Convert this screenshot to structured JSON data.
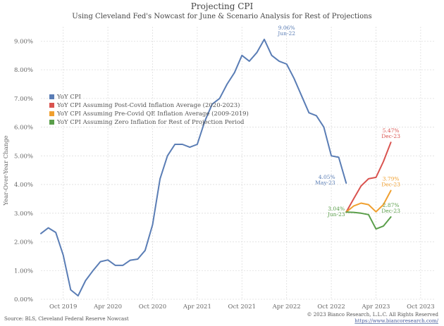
{
  "chart_data": {
    "type": "line",
    "title": "Projecting CPI",
    "subtitle": "Using Cleveland Fed's Nowcast for June & Scenario Analysis for Rest of Projections",
    "ylabel": "Year-Over-Year Change",
    "xlabel": "",
    "ylim": [
      0,
      9.5
    ],
    "yticks": [
      {
        "value": 0,
        "label": "0.00%"
      },
      {
        "value": 1,
        "label": "1.00%"
      },
      {
        "value": 2,
        "label": "2.00%"
      },
      {
        "value": 3,
        "label": "3.00%"
      },
      {
        "value": 4,
        "label": "4.00%"
      },
      {
        "value": 5,
        "label": "5.00%"
      },
      {
        "value": 6,
        "label": "6.00%"
      },
      {
        "value": 7,
        "label": "7.00%"
      },
      {
        "value": 8,
        "label": "8.00%"
      },
      {
        "value": 9,
        "label": "9.00%"
      }
    ],
    "xticks": [
      {
        "index": 0,
        "label": "Oct 2019"
      },
      {
        "index": 6,
        "label": "Apr 2020"
      },
      {
        "index": 12,
        "label": "Oct 2020"
      },
      {
        "index": 18,
        "label": "Apr 2021"
      },
      {
        "index": 24,
        "label": "Oct 2021"
      },
      {
        "index": 30,
        "label": "Apr 2022"
      },
      {
        "index": 36,
        "label": "Oct 2022"
      },
      {
        "index": 42,
        "label": "Apr 2023"
      },
      {
        "index": 48,
        "label": "Oct 2023"
      }
    ],
    "x_start_index": -3,
    "x_end_index": 50,
    "grid": true,
    "series": [
      {
        "name": "YoY CPI",
        "color": "#5a7db5",
        "start_index": -3,
        "values": [
          2.29,
          2.49,
          2.33,
          1.54,
          0.33,
          0.12,
          0.65,
          1.0,
          1.31,
          1.37,
          1.18,
          1.18,
          1.36,
          1.4,
          1.7,
          2.6,
          4.2,
          5.0,
          5.4,
          5.4,
          5.3,
          5.4,
          6.2,
          6.8,
          7.0,
          7.5,
          7.9,
          8.5,
          8.3,
          8.6,
          9.06,
          8.5,
          8.3,
          8.2,
          7.7,
          7.1,
          6.5,
          6.4,
          6.0,
          5.0,
          4.95,
          4.05
        ]
      },
      {
        "name": "YoY CPI Assuming Post-Covid Inflation Average (2020-2023)",
        "color": "#d9534f",
        "start_index": 38,
        "values": [
          3.04,
          3.5,
          3.95,
          4.2,
          4.25,
          4.8,
          5.47
        ]
      },
      {
        "name": "YoY CPI Assuming Pre-Covid QE Inflation Average (2009-2019)",
        "color": "#f0a030",
        "start_index": 38,
        "values": [
          3.04,
          3.25,
          3.35,
          3.3,
          3.05,
          3.3,
          3.79
        ]
      },
      {
        "name": "YoY CPI Assuming Zero Inflation for Rest of Projection Period",
        "color": "#5a9e4a",
        "start_index": 38,
        "values": [
          3.04,
          3.03,
          3.0,
          2.95,
          2.45,
          2.55,
          2.87
        ]
      }
    ],
    "annotations": [
      {
        "text": "9.06%",
        "subtext": "Jun-22",
        "value": 9.06,
        "index": 30,
        "color": "#5a7db5",
        "anchor": "above"
      },
      {
        "text": "4.05%",
        "subtext": "May-23",
        "value": 4.05,
        "index": 37,
        "color": "#5a7db5",
        "anchor": "left"
      },
      {
        "text": "3.04%",
        "subtext": "Jun-23",
        "value": 3.04,
        "index": 38,
        "color": "#5a9e4a",
        "anchor": "below"
      },
      {
        "text": "5.47%",
        "subtext": "Dec-23",
        "value": 5.47,
        "index": 44,
        "color": "#d9534f",
        "anchor": "above"
      },
      {
        "text": "3.79%",
        "subtext": "Dec-23",
        "value": 3.79,
        "index": 44,
        "color": "#f0a030",
        "anchor": "above"
      },
      {
        "text": "2.87%",
        "subtext": "Dec-23",
        "value": 2.87,
        "index": 44,
        "color": "#5a9e4a",
        "anchor": "above"
      }
    ],
    "legend_position": "left-middle"
  },
  "footer": {
    "source": "Source: BLS, Cleveland Federal Reserve Nowcast",
    "copyright": "© 2023 Bianco Research, L.L.C. All Rights Reserved",
    "url": "https://www.biancoresearch.com/"
  }
}
